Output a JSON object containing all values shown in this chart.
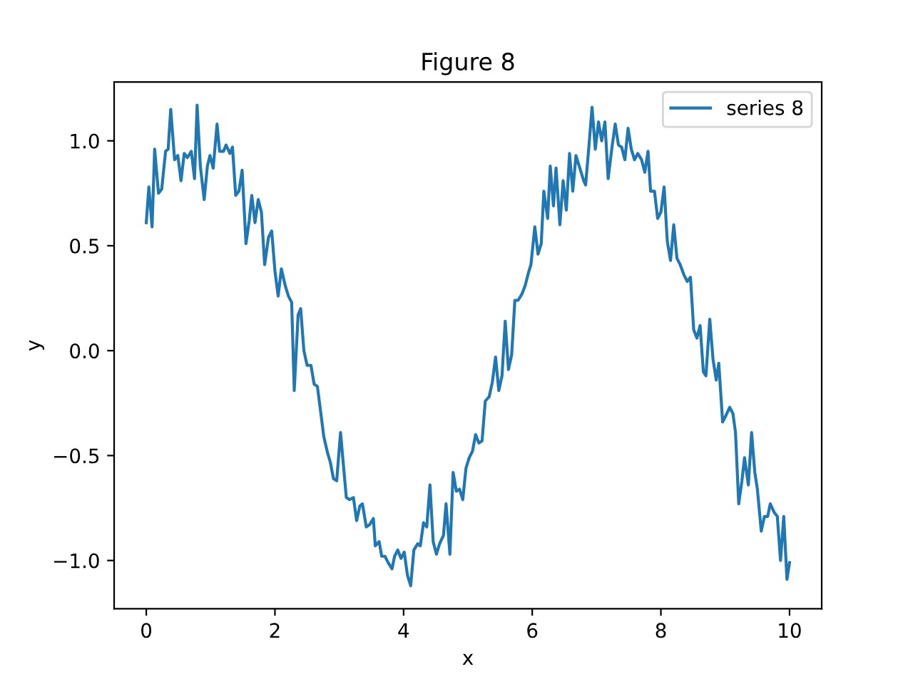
{
  "chart_data": {
    "type": "line",
    "title": "Figure 8",
    "xlabel": "x",
    "ylabel": "y",
    "xlim": [
      -0.5,
      10.5
    ],
    "ylim": [
      -1.23,
      1.28
    ],
    "xticks": [
      0,
      2,
      4,
      6,
      8,
      10
    ],
    "yticks": [
      {
        "value": -1.0,
        "label": "−1.0"
      },
      {
        "value": -0.5,
        "label": "−0.5"
      },
      {
        "value": 0.0,
        "label": "0.0"
      },
      {
        "value": 0.5,
        "label": "0.5"
      },
      {
        "value": 1.0,
        "label": "1.0"
      }
    ],
    "grid": false,
    "legend": "top right",
    "series": [
      {
        "name": "series 8",
        "color": "#1f77b4",
        "x": [
          0.0,
          0.04,
          0.09,
          0.13,
          0.19,
          0.24,
          0.3,
          0.34,
          0.38,
          0.44,
          0.49,
          0.54,
          0.59,
          0.64,
          0.7,
          0.75,
          0.79,
          0.84,
          0.9,
          0.95,
          0.99,
          1.04,
          1.1,
          1.14,
          1.2,
          1.24,
          1.3,
          1.34,
          1.39,
          1.44,
          1.49,
          1.55,
          1.6,
          1.64,
          1.69,
          1.74,
          1.79,
          1.84,
          1.9,
          1.95,
          2.0,
          2.05,
          2.1,
          2.16,
          2.21,
          2.26,
          2.3,
          2.36,
          2.4,
          2.45,
          2.5,
          2.56,
          2.61,
          2.66,
          2.71,
          2.76,
          2.82,
          2.86,
          2.91,
          2.96,
          3.02,
          3.06,
          3.11,
          3.16,
          3.22,
          3.27,
          3.32,
          3.36,
          3.42,
          3.47,
          3.53,
          3.56,
          3.62,
          3.66,
          3.71,
          3.76,
          3.82,
          3.86,
          3.91,
          3.96,
          4.01,
          4.06,
          4.11,
          4.16,
          4.22,
          4.26,
          4.31,
          4.36,
          4.41,
          4.46,
          4.51,
          4.56,
          4.62,
          4.66,
          4.72,
          4.77,
          4.82,
          4.87,
          4.92,
          4.97,
          5.02,
          5.07,
          5.12,
          5.17,
          5.22,
          5.27,
          5.33,
          5.38,
          5.43,
          5.48,
          5.53,
          5.58,
          5.63,
          5.68,
          5.73,
          5.78,
          5.84,
          5.89,
          5.94,
          5.98,
          6.04,
          6.09,
          6.14,
          6.18,
          6.24,
          6.28,
          6.33,
          6.37,
          6.43,
          6.48,
          6.53,
          6.58,
          6.63,
          6.68,
          6.73,
          6.8,
          6.83,
          6.88,
          6.93,
          6.98,
          7.03,
          7.08,
          7.13,
          7.18,
          7.24,
          7.29,
          7.34,
          7.39,
          7.44,
          7.49,
          7.54,
          7.59,
          7.64,
          7.7,
          7.75,
          7.8,
          7.84,
          7.9,
          7.95,
          8.0,
          8.05,
          8.1,
          8.15,
          8.2,
          8.25,
          8.3,
          8.36,
          8.41,
          8.46,
          8.51,
          8.56,
          8.61,
          8.66,
          8.7,
          8.76,
          8.81,
          8.86,
          8.9,
          8.96,
          9.01,
          9.07,
          9.12,
          9.16,
          9.21,
          9.26,
          9.3,
          9.36,
          9.41,
          9.46,
          9.5,
          9.56,
          9.61,
          9.66,
          9.7,
          9.76,
          9.81,
          9.86,
          9.91,
          9.96,
          10.0
        ],
        "values": [
          0.61,
          0.78,
          0.59,
          0.96,
          0.75,
          0.77,
          0.95,
          0.96,
          1.15,
          0.91,
          0.93,
          0.81,
          0.94,
          0.92,
          0.95,
          0.82,
          1.17,
          0.88,
          0.72,
          0.88,
          0.93,
          0.87,
          1.08,
          0.95,
          0.95,
          0.98,
          0.94,
          0.97,
          0.74,
          0.76,
          0.86,
          0.51,
          0.62,
          0.74,
          0.61,
          0.72,
          0.66,
          0.41,
          0.54,
          0.57,
          0.38,
          0.26,
          0.39,
          0.31,
          0.26,
          0.23,
          -0.19,
          0.17,
          0.2,
          0.0,
          -0.07,
          -0.07,
          -0.16,
          -0.17,
          -0.29,
          -0.41,
          -0.49,
          -0.53,
          -0.61,
          -0.62,
          -0.39,
          -0.53,
          -0.7,
          -0.71,
          -0.7,
          -0.81,
          -0.74,
          -0.73,
          -0.84,
          -0.83,
          -0.8,
          -0.93,
          -0.91,
          -0.98,
          -0.98,
          -1.01,
          -1.04,
          -0.98,
          -0.95,
          -0.99,
          -0.96,
          -1.07,
          -1.12,
          -0.95,
          -0.92,
          -0.93,
          -0.82,
          -0.84,
          -0.64,
          -0.91,
          -0.97,
          -0.92,
          -0.88,
          -0.73,
          -0.97,
          -0.58,
          -0.67,
          -0.66,
          -0.71,
          -0.56,
          -0.51,
          -0.48,
          -0.4,
          -0.44,
          -0.43,
          -0.24,
          -0.22,
          -0.15,
          -0.03,
          -0.19,
          -0.12,
          0.14,
          -0.09,
          -0.02,
          0.24,
          0.24,
          0.27,
          0.31,
          0.37,
          0.41,
          0.59,
          0.46,
          0.51,
          0.76,
          0.63,
          0.88,
          0.69,
          0.87,
          0.6,
          0.81,
          0.67,
          0.94,
          0.76,
          0.93,
          0.88,
          0.81,
          0.79,
          0.97,
          1.16,
          0.96,
          1.09,
          1.0,
          1.09,
          0.82,
          0.97,
          1.08,
          0.98,
          0.97,
          0.91,
          1.06,
          0.96,
          0.91,
          0.94,
          0.91,
          0.85,
          0.95,
          0.76,
          0.76,
          0.63,
          0.66,
          0.78,
          0.52,
          0.43,
          0.6,
          0.44,
          0.41,
          0.36,
          0.33,
          0.35,
          0.1,
          0.06,
          0.12,
          -0.1,
          -0.12,
          0.15,
          -0.04,
          -0.14,
          -0.06,
          -0.34,
          -0.31,
          -0.27,
          -0.3,
          -0.39,
          -0.73,
          -0.62,
          -0.51,
          -0.64,
          -0.39,
          -0.58,
          -0.66,
          -0.86,
          -0.79,
          -0.79,
          -0.73,
          -0.77,
          -0.79,
          -1.0,
          -0.79,
          -1.09,
          -1.01
        ]
      }
    ]
  }
}
